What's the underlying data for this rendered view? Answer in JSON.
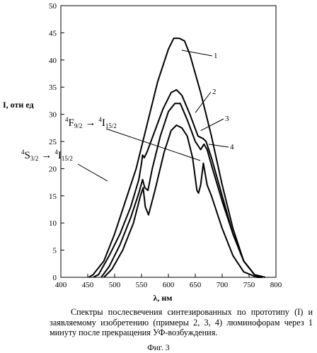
{
  "chart_data": {
    "type": "line",
    "xlabel": "λ, нм",
    "ylabel": "I, отн ед",
    "xlim": [
      400,
      800
    ],
    "ylim": [
      0,
      50
    ],
    "xticks": [
      "400",
      "450",
      "500",
      "550",
      "600",
      "650",
      "700",
      "750",
      "800"
    ],
    "yticks": [
      "0",
      "5",
      "10",
      "15",
      "20",
      "25",
      "30",
      "35",
      "40",
      "45",
      "50"
    ],
    "grid": false,
    "series": [
      {
        "name": "1",
        "x": [
          452,
          460,
          480,
          500,
          520,
          540,
          560,
          580,
          600,
          610,
          620,
          630,
          640,
          660,
          680,
          700,
          720,
          740,
          760,
          770
        ],
        "y": [
          0,
          0.5,
          3,
          8,
          14,
          20,
          28,
          36,
          42,
          44,
          44,
          43.5,
          41,
          34,
          26,
          17,
          9,
          3,
          0.5,
          0
        ]
      },
      {
        "name": "2",
        "x": [
          460,
          470,
          490,
          510,
          530,
          545,
          550,
          552,
          555,
          560,
          575,
          590,
          605,
          615,
          625,
          640,
          655,
          665,
          670,
          680,
          700,
          720,
          740,
          760,
          775
        ],
        "y": [
          0,
          0.5,
          4,
          8,
          13,
          18,
          21,
          22.5,
          22,
          23,
          27,
          31,
          34,
          34.5,
          33.5,
          30,
          26,
          25.5,
          25,
          22,
          15,
          8,
          3,
          0.5,
          0
        ]
      },
      {
        "name": "3",
        "x": [
          475,
          490,
          510,
          530,
          545,
          552,
          556,
          562,
          570,
          585,
          600,
          612,
          622,
          635,
          650,
          660,
          666,
          672,
          682,
          700,
          720,
          740,
          760,
          780
        ],
        "y": [
          0,
          2,
          6,
          11,
          15.5,
          18,
          16.5,
          16,
          20,
          26,
          30.5,
          32,
          32,
          29,
          25,
          23.5,
          24.5,
          23.5,
          20,
          14,
          8,
          3,
          0.5,
          0
        ]
      },
      {
        "name": "4",
        "x": [
          480,
          495,
          515,
          535,
          548,
          553,
          557,
          563,
          575,
          592,
          605,
          615,
          625,
          635,
          645,
          653,
          656,
          660,
          665,
          672,
          680,
          700,
          720,
          740,
          765,
          775
        ],
        "y": [
          0,
          1.5,
          5,
          10,
          15,
          16.5,
          13,
          11.5,
          16,
          23,
          27,
          28,
          27.5,
          26,
          22,
          16,
          15.5,
          17,
          21,
          17,
          15,
          9,
          4,
          1,
          0,
          0
        ]
      }
    ],
    "annotations": [
      {
        "text_main": "F",
        "sup_left": "4",
        "sub": "9/2",
        "arrow": "→",
        "text_main2": "I",
        "sup_left2": "4",
        "sub2": "15/2"
      },
      {
        "text_main": "S",
        "sup_left": "4",
        "sub": "3/2",
        "arrow": "→",
        "text_main2": "I",
        "sup_left2": "4",
        "sub2": "15/2"
      }
    ]
  },
  "caption": {
    "text": "Спектры послесвечения синтезированных по прототипу (I) и заявляемому изобретению (примеры 2, 3, 4) люминофорам через 1 минуту после прекращения УФ-возбуждения.",
    "figure_label": "Фиг. 3"
  }
}
